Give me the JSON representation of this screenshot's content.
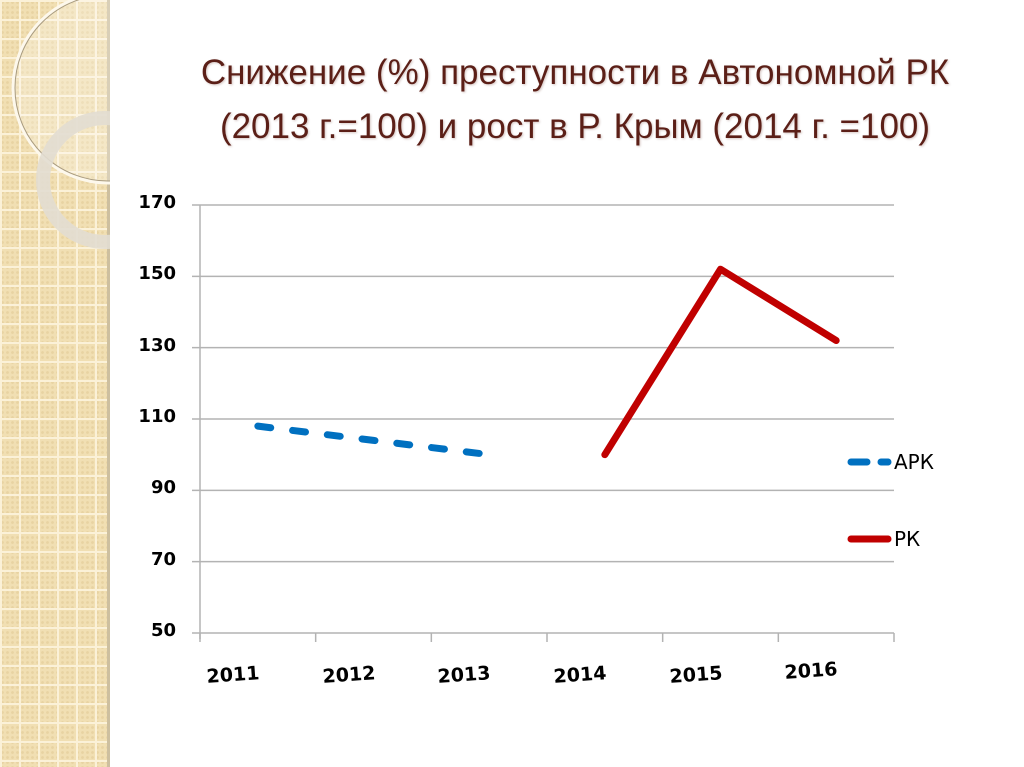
{
  "slide": {
    "title_line1": "Снижение (%) преступности в Автономной РК",
    "title_line2": "(2013 г.=100) и рост в Р. Крым (2014 г. =100)"
  },
  "colors": {
    "title": "#5b1f17",
    "apk": "#0070c0",
    "rk": "#c00000",
    "grid": "#b3b3b3",
    "side_panel": "#f1dfb3"
  },
  "axis": {
    "y_ticks": [
      "170",
      "150",
      "130",
      "110",
      "90",
      "70",
      "50"
    ],
    "x_ticks": [
      "2011",
      "2012",
      "2013",
      "2014",
      "2015",
      "2016"
    ]
  },
  "legend": {
    "items": [
      {
        "label": "АРК",
        "style": "dashed",
        "color": "#0070c0"
      },
      {
        "label": "РК",
        "style": "solid",
        "color": "#c00000"
      }
    ]
  },
  "chart_data": {
    "type": "line",
    "title": "Снижение (%) преступности в Автономной РК (2013 г.=100) и рост в Р. Крым (2014 г. =100)",
    "categories": [
      "2011",
      "2012",
      "2013",
      "2014",
      "2015",
      "2016"
    ],
    "series": [
      {
        "name": "АРК",
        "values": [
          108,
          104,
          100,
          null,
          null,
          null
        ],
        "line_style": "dashed",
        "color": "#0070c0"
      },
      {
        "name": "РК",
        "values": [
          null,
          null,
          null,
          100,
          152,
          132
        ],
        "line_style": "solid",
        "color": "#c00000"
      }
    ],
    "xlabel": "",
    "ylabel": "",
    "ylim": [
      50,
      170
    ],
    "y_tick_step": 20,
    "grid": true,
    "legend_position": "right"
  }
}
